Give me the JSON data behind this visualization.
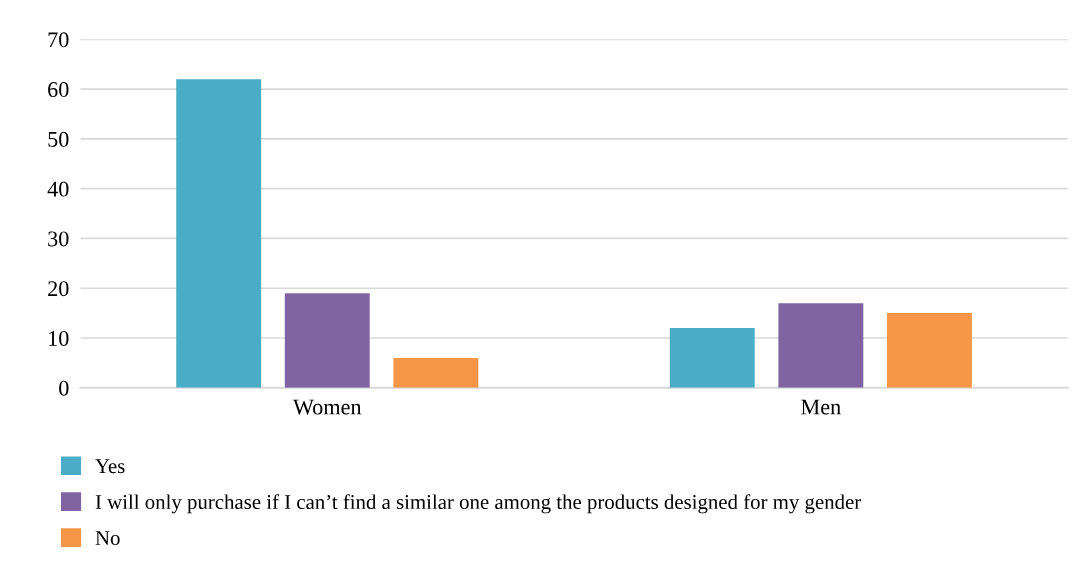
{
  "chart_data": {
    "type": "bar",
    "categories": [
      "Women",
      "Men"
    ],
    "series": [
      {
        "name": "Yes",
        "color": "#4bacc6",
        "values": [
          62,
          12
        ]
      },
      {
        "name": "I will only purchase if I can’t find a similar one among the products designed for my gender",
        "color": "#8064a2",
        "values": [
          19,
          17
        ]
      },
      {
        "name": "No",
        "color": "#f79646",
        "values": [
          6,
          15
        ]
      }
    ],
    "ylim": [
      0,
      70
    ],
    "yticks": [
      0,
      10,
      20,
      30,
      40,
      50,
      60,
      70
    ],
    "grid": "y",
    "legend": "bottom left"
  }
}
